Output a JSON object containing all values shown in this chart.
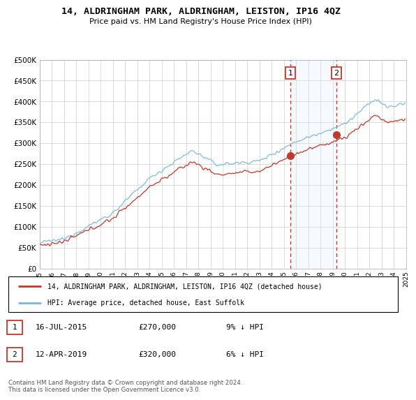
{
  "title": "14, ALDRINGHAM PARK, ALDRINGHAM, LEISTON, IP16 4QZ",
  "subtitle": "Price paid vs. HM Land Registry's House Price Index (HPI)",
  "legend_line1": "14, ALDRINGHAM PARK, ALDRINGHAM, LEISTON, IP16 4QZ (detached house)",
  "legend_line2": "HPI: Average price, detached house, East Suffolk",
  "annotation1_date": "16-JUL-2015",
  "annotation1_price": "£270,000",
  "annotation1_hpi": "9% ↓ HPI",
  "annotation2_date": "12-APR-2019",
  "annotation2_price": "£320,000",
  "annotation2_hpi": "6% ↓ HPI",
  "footer": "Contains HM Land Registry data © Crown copyright and database right 2024.\nThis data is licensed under the Open Government Licence v3.0.",
  "sale1_year": 2015.54,
  "sale1_value": 270000,
  "sale2_year": 2019.28,
  "sale2_value": 320000,
  "ylim_min": 0,
  "ylim_max": 500000,
  "xlim_min": 1995,
  "xlim_max": 2025,
  "hpi_color": "#7ab8d9",
  "price_color": "#c0392b",
  "annotation_box_color": "#c0392b",
  "shaded_color": "#ddeeff",
  "dashed_color": "#c0392b",
  "background_color": "#ffffff",
  "grid_color": "#cccccc"
}
